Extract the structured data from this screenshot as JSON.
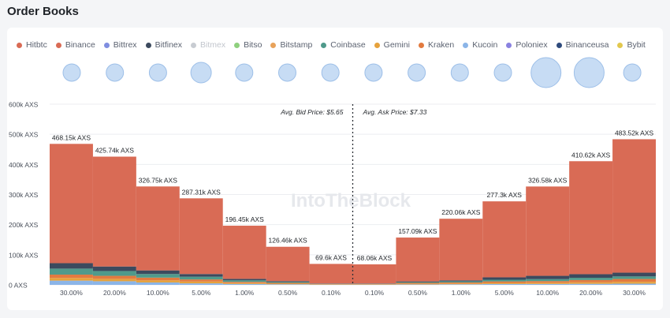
{
  "page": {
    "title": "Order Books"
  },
  "legend": [
    {
      "name": "Hitbtc",
      "color": "#d96b55"
    },
    {
      "name": "Binance",
      "color": "#d96b55"
    },
    {
      "name": "Bittrex",
      "color": "#7f8ee0"
    },
    {
      "name": "Bitfinex",
      "color": "#3c4a5e"
    },
    {
      "name": "Bitmex",
      "color": "#c8ccd2",
      "muted": true
    },
    {
      "name": "Bitso",
      "color": "#8fd07e"
    },
    {
      "name": "Bitstamp",
      "color": "#e8a25a"
    },
    {
      "name": "Coinbase",
      "color": "#4f9a8b"
    },
    {
      "name": "Gemini",
      "color": "#e6a23c"
    },
    {
      "name": "Kraken",
      "color": "#e27a3f"
    },
    {
      "name": "Kucoin",
      "color": "#8bb5e8"
    },
    {
      "name": "Poloniex",
      "color": "#8a82e0"
    },
    {
      "name": "Binanceusa",
      "color": "#2e4a7c"
    },
    {
      "name": "Bybit",
      "color": "#e2c84e"
    }
  ],
  "bubbles": [
    {
      "exchange": "Hitbtc",
      "size": "small"
    },
    {
      "exchange": "Binance",
      "size": "small"
    },
    {
      "exchange": "Bittrex",
      "size": "small"
    },
    {
      "exchange": "Bitfinex",
      "size": "medium"
    },
    {
      "exchange": "Bitmex",
      "size": "small"
    },
    {
      "exchange": "Bitso",
      "size": "small"
    },
    {
      "exchange": "Bitstamp",
      "size": "small"
    },
    {
      "exchange": "Coinbase",
      "size": "small"
    },
    {
      "exchange": "Gemini",
      "size": "small"
    },
    {
      "exchange": "Kraken",
      "size": "small"
    },
    {
      "exchange": "Kucoin",
      "size": "small"
    },
    {
      "exchange": "Poloniex",
      "size": "large"
    },
    {
      "exchange": "Binanceusa",
      "size": "large"
    },
    {
      "exchange": "Bybit",
      "size": "small"
    }
  ],
  "watermark": "IntoTheBlock",
  "chart_data": {
    "type": "bar",
    "stacked": true,
    "ylim": [
      0,
      600000
    ],
    "yticks": [
      "0 AXS",
      "100k AXS",
      "200k AXS",
      "300k AXS",
      "400k AXS",
      "500k AXS",
      "600k AXS"
    ],
    "grid": true,
    "annotations": {
      "bid": "Avg. Bid Price: $5.65",
      "ask": "Avg. Ask Price: $7.33"
    },
    "categories": [
      "30.00%",
      "20.00%",
      "10.00%",
      "5.00%",
      "1.00%",
      "0.50%",
      "0.10%",
      "0.10%",
      "0.50%",
      "1.00%",
      "5.00%",
      "10.00%",
      "20.00%",
      "30.00%"
    ],
    "sides": [
      "bid",
      "bid",
      "bid",
      "bid",
      "bid",
      "bid",
      "bid",
      "ask",
      "ask",
      "ask",
      "ask",
      "ask",
      "ask",
      "ask"
    ],
    "totals": [
      468150,
      425740,
      326750,
      287310,
      196450,
      126460,
      69600,
      68060,
      157090,
      220060,
      277300,
      326580,
      410620,
      483520
    ],
    "total_labels": [
      "468.15k AXS",
      "425.74k AXS",
      "326.75k AXS",
      "287.31k AXS",
      "196.45k AXS",
      "126.46k AXS",
      "69.6k AXS",
      "68.06k AXS",
      "157.09k AXS",
      "220.06k AXS",
      "277.3k AXS",
      "326.58k AXS",
      "410.62k AXS",
      "483.52k AXS"
    ],
    "series": [
      {
        "name": "Kucoin",
        "color": "#8bb5e8",
        "values": [
          14000,
          12000,
          8000,
          5000,
          3000,
          2000,
          500,
          500,
          1500,
          2000,
          3000,
          3000,
          3500,
          4000
        ]
      },
      {
        "name": "Gemini",
        "color": "#e6a23c",
        "values": [
          9000,
          8000,
          7000,
          6000,
          3000,
          2000,
          800,
          800,
          2000,
          2500,
          3500,
          4000,
          5000,
          6000
        ]
      },
      {
        "name": "Kraken",
        "color": "#e27a3f",
        "values": [
          11000,
          10000,
          9000,
          7000,
          4000,
          2500,
          1000,
          1000,
          3000,
          3500,
          5000,
          5500,
          7500,
          9500
        ]
      },
      {
        "name": "Coinbase",
        "color": "#4f9a8b",
        "values": [
          20000,
          16000,
          12000,
          9000,
          5000,
          3000,
          1000,
          1000,
          2500,
          3500,
          5500,
          6500,
          7500,
          8500
        ]
      },
      {
        "name": "Bitfinex",
        "color": "#3c4a5e",
        "values": [
          18000,
          15000,
          12000,
          9000,
          5000,
          3000,
          1000,
          1000,
          2500,
          3500,
          8000,
          11000,
          12000,
          12500
        ]
      },
      {
        "name": "Binance",
        "color": "#d96b55",
        "values": [
          396150,
          364740,
          278750,
          251310,
          176450,
          113960,
          65300,
          63760,
          145590,
          204560,
          252300,
          296580,
          375120,
          443020
        ]
      }
    ]
  }
}
